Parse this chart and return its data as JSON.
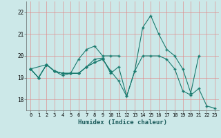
{
  "background_color": "#cce8e8",
  "grid_color": "#e08888",
  "line_color": "#1a7a6e",
  "xlabel": "Humidex (Indice chaleur)",
  "xlim": [
    -0.5,
    23.5
  ],
  "ylim": [
    17.5,
    22.5
  ],
  "yticks": [
    18,
    19,
    20,
    21,
    22
  ],
  "xticks": [
    0,
    1,
    2,
    3,
    4,
    5,
    6,
    7,
    8,
    9,
    10,
    11,
    12,
    13,
    14,
    15,
    16,
    17,
    18,
    19,
    20,
    21,
    22,
    23
  ],
  "lines": [
    {
      "x": [
        0,
        1,
        2,
        3,
        4,
        5,
        6,
        7,
        8,
        9,
        10,
        11,
        12,
        13,
        14,
        15,
        16,
        17,
        18,
        19,
        20,
        21,
        22,
        23
      ],
      "y": [
        19.4,
        19.0,
        19.6,
        19.3,
        19.1,
        19.2,
        19.2,
        19.5,
        19.7,
        19.85,
        19.3,
        18.85,
        18.15,
        19.3,
        20.0,
        20.0,
        20.0,
        19.85,
        19.4,
        18.4,
        18.2,
        18.5,
        17.7,
        17.6
      ]
    },
    {
      "x": [
        0,
        1,
        2,
        3,
        4,
        5,
        6,
        7,
        8,
        9,
        10,
        11
      ],
      "y": [
        19.4,
        19.0,
        19.6,
        19.3,
        19.2,
        19.2,
        19.85,
        20.3,
        20.45,
        20.0,
        20.0,
        20.0
      ]
    },
    {
      "x": [
        0,
        1,
        2,
        3,
        4,
        5,
        6,
        7,
        8,
        9,
        10,
        11,
        12,
        13,
        14,
        15,
        16,
        17,
        18,
        19,
        20,
        21
      ],
      "y": [
        19.4,
        19.0,
        19.6,
        19.3,
        19.2,
        19.2,
        19.2,
        19.5,
        19.85,
        19.9,
        19.2,
        19.5,
        18.15,
        19.3,
        21.3,
        21.85,
        21.0,
        20.3,
        20.0,
        19.4,
        18.3,
        20.0
      ]
    },
    {
      "x": [
        0,
        2,
        3,
        4,
        5,
        6,
        7,
        8,
        9,
        10
      ],
      "y": [
        19.4,
        19.6,
        19.3,
        19.2,
        19.2,
        19.2,
        19.5,
        19.7,
        19.85,
        19.3
      ]
    }
  ]
}
